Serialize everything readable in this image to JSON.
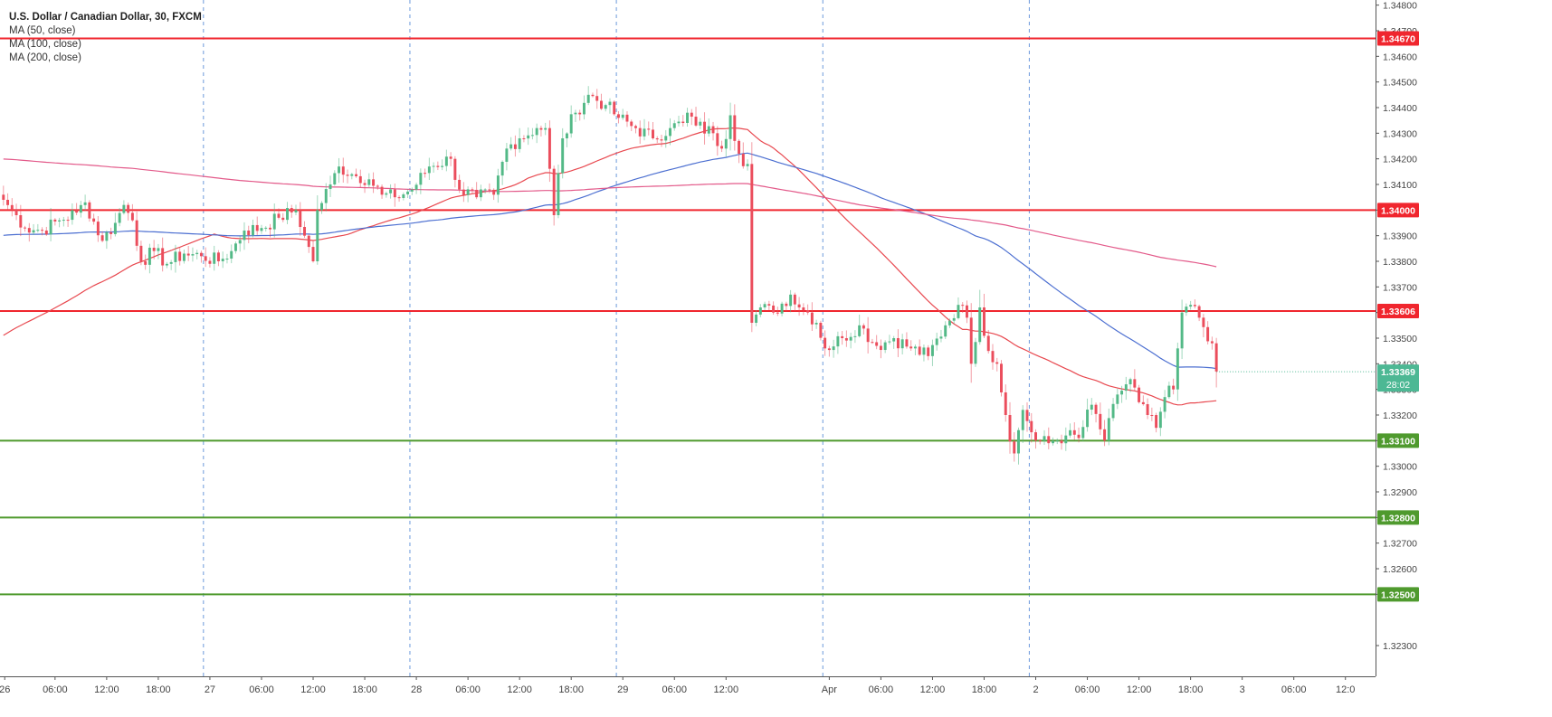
{
  "chart_data": {
    "type": "candlestick",
    "title": "U.S. Dollar / Canadian Dollar, 30, FXCM",
    "indicators": [
      {
        "name": "MA (50, close)",
        "color": "#e8484f"
      },
      {
        "name": "MA (100, close)",
        "color": "#4c6fd1"
      },
      {
        "name": "MA (200, close)",
        "color": "#e35a8a"
      }
    ],
    "ylim": [
      1.3218,
      1.3482
    ],
    "y_ticks": [
      1.323,
      1.325,
      1.326,
      1.327,
      1.328,
      1.329,
      1.33,
      1.331,
      1.332,
      1.333,
      1.334,
      1.335,
      1.336,
      1.337,
      1.338,
      1.339,
      1.34,
      1.341,
      1.342,
      1.343,
      1.344,
      1.345,
      1.346,
      1.347,
      1.348
    ],
    "y_tick_labels": [
      "1.32300",
      "1.32500",
      "1.32600",
      "1.32700",
      "1.32800",
      "1.32900",
      "1.33000",
      "1.33100",
      "1.33200",
      "1.33300",
      "1.33400",
      "1.33500",
      "1.33600",
      "1.33700",
      "1.33800",
      "1.33900",
      "1.34000",
      "1.34100",
      "1.34200",
      "1.34300",
      "1.34400",
      "1.34500",
      "1.34600",
      "1.34700",
      "1.34800"
    ],
    "x_ticks": [
      {
        "i": 0.3,
        "label": "26"
      },
      {
        "i": 12,
        "label": "06:00"
      },
      {
        "i": 24,
        "label": "12:00"
      },
      {
        "i": 36,
        "label": "18:00"
      },
      {
        "i": 48,
        "label": "27"
      },
      {
        "i": 60,
        "label": "06:00"
      },
      {
        "i": 72,
        "label": "12:00"
      },
      {
        "i": 84,
        "label": "18:00"
      },
      {
        "i": 96,
        "label": "28"
      },
      {
        "i": 108,
        "label": "06:00"
      },
      {
        "i": 120,
        "label": "12:00"
      },
      {
        "i": 132,
        "label": "18:00"
      },
      {
        "i": 144,
        "label": "29"
      },
      {
        "i": 156,
        "label": "06:00"
      },
      {
        "i": 168,
        "label": "12:00"
      },
      {
        "i": 192,
        "label": "Apr"
      },
      {
        "i": 204,
        "label": "06:00"
      },
      {
        "i": 216,
        "label": "12:00"
      },
      {
        "i": 228,
        "label": "18:00"
      },
      {
        "i": 240,
        "label": "2"
      },
      {
        "i": 252,
        "label": "06:00"
      },
      {
        "i": 264,
        "label": "12:00"
      },
      {
        "i": 276,
        "label": "18:00"
      },
      {
        "i": 288,
        "label": "3"
      },
      {
        "i": 300,
        "label": "06:00"
      },
      {
        "i": 312,
        "label": "12:0"
      }
    ],
    "session_dividers": [
      46,
      94,
      142,
      190,
      238
    ],
    "horizontal_levels": [
      {
        "value": 1.3467,
        "label": "1.34670",
        "color": "#f0262e"
      },
      {
        "value": 1.34,
        "label": "1.34000",
        "color": "#f0262e"
      },
      {
        "value": 1.33606,
        "label": "1.33606",
        "color": "#f0262e"
      },
      {
        "value": 1.331,
        "label": "1.33100",
        "color": "#4f9a2e"
      },
      {
        "value": 1.328,
        "label": "1.32800",
        "color": "#4f9a2e"
      },
      {
        "value": 1.325,
        "label": "1.32500",
        "color": "#4f9a2e"
      }
    ],
    "last_price": {
      "value": 1.33369,
      "label": "1.33369",
      "countdown": "28:02",
      "color": "#4db894"
    },
    "close_anchors": [
      [
        0,
        1.3404
      ],
      [
        3,
        1.3398
      ],
      [
        5,
        1.3393
      ],
      [
        9,
        1.3392
      ],
      [
        13,
        1.3396
      ],
      [
        17,
        1.3399
      ],
      [
        19,
        1.3403
      ],
      [
        23,
        1.3388
      ],
      [
        26,
        1.3395
      ],
      [
        28,
        1.3402
      ],
      [
        30,
        1.3396
      ],
      [
        32,
        1.338
      ],
      [
        35,
        1.3384
      ],
      [
        38,
        1.3379
      ],
      [
        42,
        1.3383
      ],
      [
        46,
        1.3382
      ],
      [
        50,
        1.338
      ],
      [
        53,
        1.3384
      ],
      [
        56,
        1.3392
      ],
      [
        60,
        1.3393
      ],
      [
        64,
        1.3397
      ],
      [
        68,
        1.34
      ],
      [
        70,
        1.339
      ],
      [
        72,
        1.338
      ],
      [
        73,
        1.34
      ],
      [
        76,
        1.341
      ],
      [
        78,
        1.3417
      ],
      [
        81,
        1.3414
      ],
      [
        85,
        1.3412
      ],
      [
        88,
        1.3406
      ],
      [
        91,
        1.3405
      ],
      [
        95,
        1.3408
      ],
      [
        99,
        1.3417
      ],
      [
        104,
        1.342
      ],
      [
        106,
        1.3408
      ],
      [
        110,
        1.3405
      ],
      [
        114,
        1.3406
      ],
      [
        117,
        1.3424
      ],
      [
        120,
        1.3428
      ],
      [
        124,
        1.3432
      ],
      [
        126,
        1.3432
      ],
      [
        128,
        1.3398
      ],
      [
        130,
        1.3428
      ],
      [
        133,
        1.3438
      ],
      [
        136,
        1.3445
      ],
      [
        140,
        1.3441
      ],
      [
        143,
        1.3436
      ],
      [
        147,
        1.3432
      ],
      [
        151,
        1.3428
      ],
      [
        155,
        1.3432
      ],
      [
        158,
        1.3434
      ],
      [
        159,
        1.3438
      ],
      [
        161,
        1.3433
      ],
      [
        165,
        1.343
      ],
      [
        167,
        1.3424
      ],
      [
        169,
        1.3437
      ],
      [
        171,
        1.3422
      ],
      [
        173,
        1.3418
      ],
      [
        174,
        1.3356
      ],
      [
        176,
        1.3362
      ],
      [
        179,
        1.336
      ],
      [
        183,
        1.3367
      ],
      [
        185,
        1.3362
      ],
      [
        187,
        1.336
      ],
      [
        189,
        1.3356
      ],
      [
        191,
        1.3346
      ],
      [
        195,
        1.335
      ],
      [
        199,
        1.3355
      ],
      [
        203,
        1.3347
      ],
      [
        207,
        1.335
      ],
      [
        211,
        1.3346
      ],
      [
        215,
        1.3343
      ],
      [
        219,
        1.3355
      ],
      [
        222,
        1.3363
      ],
      [
        224,
        1.3358
      ],
      [
        225,
        1.334
      ],
      [
        227,
        1.3362
      ],
      [
        229,
        1.3345
      ],
      [
        231,
        1.334
      ],
      [
        233,
        1.332
      ],
      [
        235,
        1.3305
      ],
      [
        237,
        1.3322
      ],
      [
        240,
        1.331
      ],
      [
        243,
        1.3309
      ],
      [
        247,
        1.3312
      ],
      [
        250,
        1.3311
      ],
      [
        253,
        1.3324
      ],
      [
        256,
        1.331
      ],
      [
        259,
        1.3328
      ],
      [
        262,
        1.3334
      ],
      [
        264,
        1.3325
      ],
      [
        266,
        1.332
      ],
      [
        268,
        1.3315
      ],
      [
        270,
        1.3327
      ],
      [
        272,
        1.333
      ],
      [
        273,
        1.3346
      ],
      [
        274,
        1.336
      ],
      [
        276,
        1.3363
      ],
      [
        278,
        1.3358
      ],
      [
        281,
        1.3348
      ],
      [
        282,
        1.3337
      ]
    ],
    "pattern_seed": 7,
    "x_range": [
      -0.8,
      319
    ],
    "ma_config": [
      {
        "period": 50,
        "color": "#e8484f"
      },
      {
        "period": 100,
        "color": "#4c6fd1"
      },
      {
        "period": 200,
        "color": "#e35a8a"
      }
    ],
    "ma_warmup": [
      1.335,
      1.339,
      1.342
    ],
    "candle_up_color": "#53b987",
    "candle_down_color": "#eb4d5c"
  }
}
